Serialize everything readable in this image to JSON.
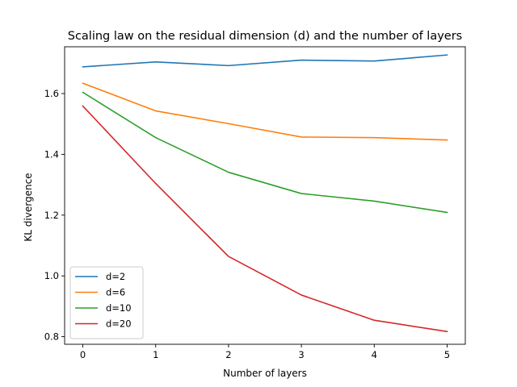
{
  "chart_data": {
    "type": "line",
    "title": "Scaling law on the residual dimension (d) and the number of layers",
    "xlabel": "Number of layers",
    "ylabel": "KL divergence",
    "x": [
      0,
      1,
      2,
      3,
      4,
      5
    ],
    "xlim": [
      -0.25,
      5.25
    ],
    "ylim": [
      0.775,
      1.754
    ],
    "xticks": [
      0,
      1,
      2,
      3,
      4,
      5
    ],
    "yticks": [
      0.8,
      1.0,
      1.2,
      1.4,
      1.6
    ],
    "ytick_labels": [
      "0.8",
      "1.0",
      "1.2",
      "1.4",
      "1.6"
    ],
    "grid": false,
    "legend_position": "lower-left",
    "series": [
      {
        "name": "d=2",
        "color": "#1f77b4",
        "values": [
          1.688,
          1.704,
          1.692,
          1.71,
          1.707,
          1.727
        ]
      },
      {
        "name": "d=6",
        "color": "#ff7f0e",
        "values": [
          1.634,
          1.543,
          1.501,
          1.457,
          1.455,
          1.447
        ]
      },
      {
        "name": "d=10",
        "color": "#2ca02c",
        "values": [
          1.604,
          1.455,
          1.341,
          1.271,
          1.246,
          1.209
        ]
      },
      {
        "name": "d=20",
        "color": "#d62728",
        "values": [
          1.559,
          1.304,
          1.064,
          0.937,
          0.854,
          0.817
        ]
      }
    ]
  }
}
